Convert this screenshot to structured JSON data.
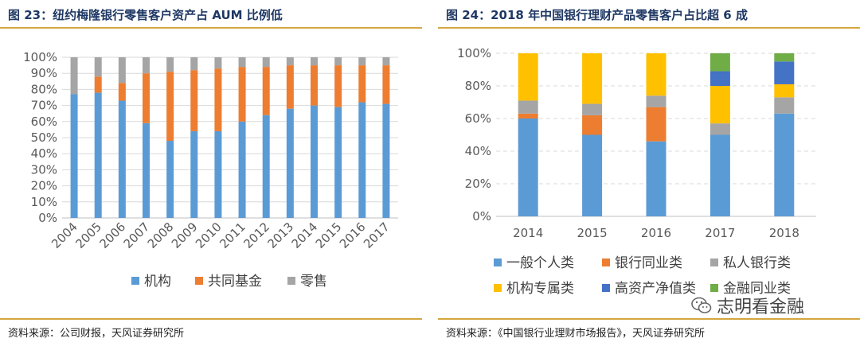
{
  "left": {
    "title": "图 23：纽约梅隆银行零售客户资产占 AUM 比例低",
    "source": "资料来源：公司财报，天风证券研究所"
  },
  "right": {
    "title": "图 24：2018 年中国银行理财产品零售客户占比超 6 成",
    "source": "资料来源：《中国银行业理财市场报告》，天风证券研究所"
  },
  "watermark": {
    "text": "志明看金融",
    "icon": "wechat-icon"
  },
  "chart_data": [
    {
      "type": "bar",
      "stacked": true,
      "title": "",
      "xlabel": "",
      "ylabel": "",
      "ylim": [
        0,
        100
      ],
      "y_ticks": [
        "0%",
        "10%",
        "20%",
        "30%",
        "40%",
        "50%",
        "60%",
        "70%",
        "80%",
        "90%",
        "100%"
      ],
      "grid": true,
      "legend": "bottom",
      "categories": [
        "2004",
        "2005",
        "2006",
        "2007",
        "2008",
        "2009",
        "2010",
        "2011",
        "2012",
        "2013",
        "2014",
        "2015",
        "2016",
        "2017"
      ],
      "series": [
        {
          "name": "机构",
          "color": "#5b9bd5",
          "values": [
            77,
            78,
            73,
            59,
            48,
            54,
            54,
            60,
            64,
            68,
            70,
            69,
            72,
            71
          ]
        },
        {
          "name": "共同基金",
          "color": "#ed7d31",
          "values": [
            0,
            10,
            11,
            31,
            43,
            38,
            39,
            34,
            30,
            27,
            25,
            26,
            23,
            24
          ]
        },
        {
          "name": "零售",
          "color": "#a5a5a5",
          "values": [
            23,
            12,
            16,
            10,
            9,
            8,
            7,
            6,
            6,
            5,
            5,
            5,
            5,
            5
          ]
        }
      ]
    },
    {
      "type": "bar",
      "stacked": true,
      "title": "",
      "xlabel": "",
      "ylabel": "",
      "ylim": [
        0,
        100
      ],
      "y_ticks": [
        "0%",
        "20%",
        "40%",
        "60%",
        "80%",
        "100%"
      ],
      "grid": true,
      "legend": "bottom",
      "categories": [
        "2014",
        "2015",
        "2016",
        "2017",
        "2018"
      ],
      "series": [
        {
          "name": "一般个人类",
          "color": "#5b9bd5",
          "values": [
            60,
            50,
            46,
            50,
            63
          ]
        },
        {
          "name": "银行同业类",
          "color": "#ed7d31",
          "values": [
            3,
            12,
            21,
            0,
            0
          ]
        },
        {
          "name": "私人银行类",
          "color": "#a5a5a5",
          "values": [
            8,
            7,
            7,
            7,
            10
          ]
        },
        {
          "name": "机构专属类",
          "color": "#ffc000",
          "values": [
            29,
            31,
            26,
            23,
            8
          ]
        },
        {
          "name": "高资产净值类",
          "color": "#4472c4",
          "values": [
            0,
            0,
            0,
            9,
            14
          ]
        },
        {
          "name": "金融同业类",
          "color": "#70ad47",
          "values": [
            0,
            0,
            0,
            11,
            5
          ]
        }
      ]
    }
  ]
}
